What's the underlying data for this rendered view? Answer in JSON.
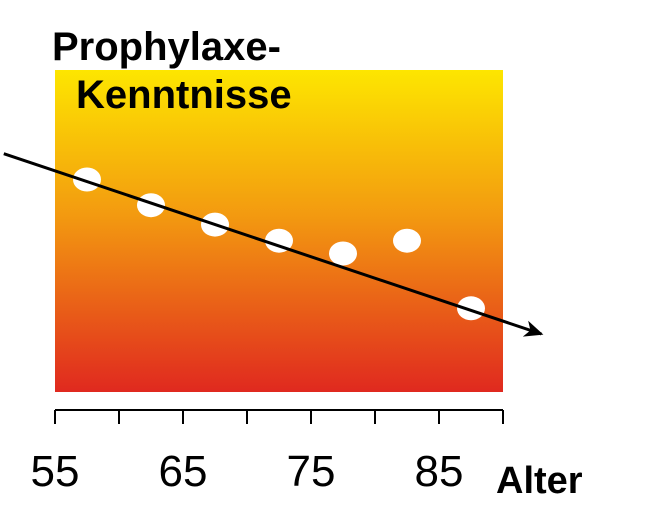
{
  "chart_data": {
    "type": "scatter",
    "title_lines": [
      "Prophylaxe-",
      "Kenntnisse"
    ],
    "xlabel": "Alter",
    "ylabel": "",
    "x_ticks_labeled": [
      55,
      65,
      75,
      85
    ],
    "x_ticks": [
      55,
      60,
      65,
      70,
      75,
      80,
      85,
      90
    ],
    "xlim": [
      55,
      90
    ],
    "series": [
      {
        "points": [
          {
            "x": 57.5,
            "y": 0.66
          },
          {
            "x": 62.5,
            "y": 0.58
          },
          {
            "x": 67.5,
            "y": 0.52
          },
          {
            "x": 72.5,
            "y": 0.47
          },
          {
            "x": 77.5,
            "y": 0.43
          },
          {
            "x": 82.5,
            "y": 0.47
          },
          {
            "x": 87.5,
            "y": 0.26
          }
        ]
      }
    ],
    "trend_arrow": {
      "from": {
        "x": 51,
        "y": 0.74
      },
      "to": {
        "x": 93,
        "y": 0.18
      }
    },
    "background_gradient": {
      "top": "#fde600",
      "bottom": "#e0291f"
    },
    "point_color": "#ffffff",
    "line_color": "#000000",
    "grid": false,
    "legend": "none"
  }
}
